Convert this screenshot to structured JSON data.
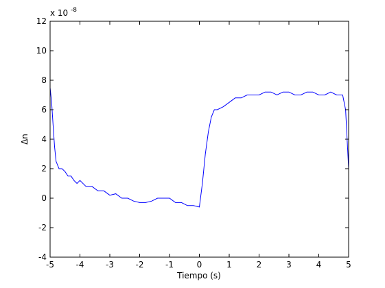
{
  "chart_data": {
    "type": "line",
    "title": "",
    "xlabel": "Tiempo (s)",
    "ylabel": "Δn",
    "y_exponent_label": "x 10",
    "y_exponent_power": "-8",
    "xlim": [
      -5,
      5
    ],
    "ylim": [
      -4,
      12
    ],
    "xticks": [
      "-5",
      "-4",
      "-3",
      "-2",
      "-1",
      "0",
      "1",
      "2",
      "3",
      "4",
      "5"
    ],
    "yticks": [
      "-4",
      "-2",
      "0",
      "2",
      "4",
      "6",
      "8",
      "10",
      "12"
    ],
    "grid": false,
    "legend": "none",
    "series": [
      {
        "color": "#0000ff",
        "x": [
          -5.0,
          -4.95,
          -4.9,
          -4.85,
          -4.8,
          -4.7,
          -4.6,
          -4.5,
          -4.4,
          -4.3,
          -4.2,
          -4.1,
          -4.0,
          -3.8,
          -3.6,
          -3.4,
          -3.2,
          -3.0,
          -2.8,
          -2.6,
          -2.4,
          -2.2,
          -2.0,
          -1.8,
          -1.6,
          -1.4,
          -1.2,
          -1.0,
          -0.8,
          -0.6,
          -0.4,
          -0.2,
          0.0,
          0.1,
          0.2,
          0.3,
          0.4,
          0.5,
          0.6,
          0.8,
          1.0,
          1.2,
          1.4,
          1.6,
          1.8,
          2.0,
          2.2,
          2.4,
          2.6,
          2.8,
          3.0,
          3.2,
          3.4,
          3.6,
          3.8,
          4.0,
          4.2,
          4.4,
          4.6,
          4.8,
          4.9,
          4.95,
          5.0
        ],
        "y": [
          7.5,
          6.5,
          5.0,
          3.5,
          2.5,
          2.0,
          2.0,
          1.8,
          1.5,
          1.5,
          1.2,
          1.0,
          1.2,
          0.8,
          0.8,
          0.5,
          0.5,
          0.2,
          0.3,
          0.0,
          0.0,
          -0.2,
          -0.3,
          -0.3,
          -0.2,
          0.0,
          0.0,
          0.0,
          -0.3,
          -0.3,
          -0.5,
          -0.5,
          -0.6,
          1.0,
          3.0,
          4.5,
          5.5,
          6.0,
          6.0,
          6.2,
          6.5,
          6.8,
          6.8,
          7.0,
          7.0,
          7.0,
          7.2,
          7.2,
          7.0,
          7.2,
          7.2,
          7.0,
          7.0,
          7.2,
          7.2,
          7.0,
          7.0,
          7.2,
          7.0,
          7.0,
          6.0,
          4.0,
          2.0
        ]
      }
    ]
  }
}
